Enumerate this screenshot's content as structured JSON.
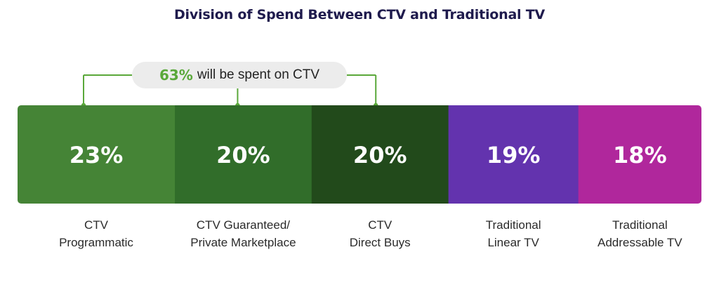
{
  "chart_data": {
    "type": "bar",
    "orientation": "horizontal-stacked",
    "title": "Division of Spend Between CTV and Traditional TV",
    "unit": "%",
    "total": 100,
    "categories": [
      [
        "CTV",
        "Programmatic"
      ],
      [
        "CTV Guaranteed/",
        "Private Marketplace"
      ],
      [
        "CTV",
        "Direct Buys"
      ],
      [
        "Traditional",
        "Linear TV"
      ],
      [
        "Traditional",
        "Addressable TV"
      ]
    ],
    "values": [
      23,
      20,
      20,
      19,
      18
    ],
    "value_labels": [
      "23%",
      "20%",
      "20%",
      "19%",
      "18%"
    ],
    "colors": [
      "#458436",
      "#316d2a",
      "#224a1b",
      "#6333ae",
      "#b0279c"
    ],
    "bracket_color": "#5aa83a",
    "annotation": {
      "value": "63%",
      "text": "will be spent on CTV",
      "spans_segments": [
        0,
        1,
        2
      ]
    }
  }
}
